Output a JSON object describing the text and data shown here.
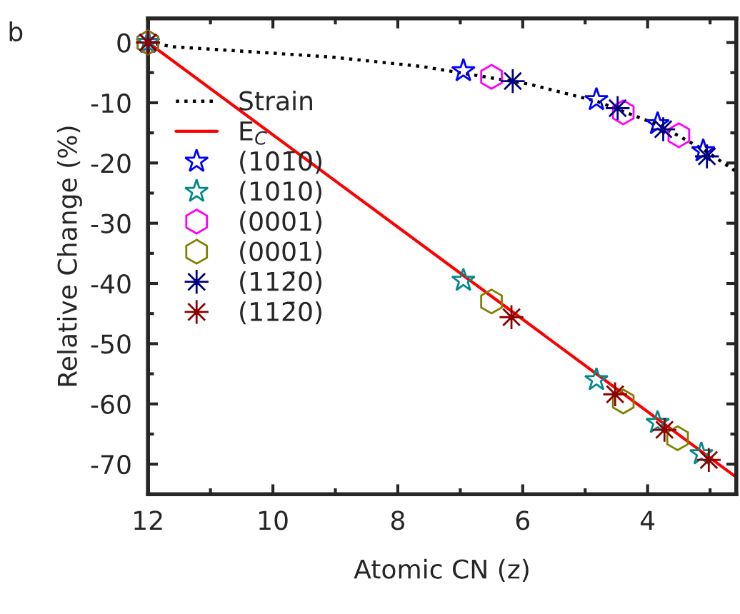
{
  "chart_data": {
    "type": "line",
    "xlabel": "Atomic CN (z)",
    "ylabel": "Relative Change (%)",
    "xlim": [
      12,
      2.58
    ],
    "xticks": [
      12,
      10,
      8,
      6,
      4
    ],
    "ylim": [
      -75,
      4
    ],
    "yticks": [
      0,
      -10,
      -20,
      -30,
      -40,
      -50,
      -60,
      -70
    ],
    "grid": false,
    "legend": "top left",
    "annotations": [
      "b"
    ],
    "series": [
      {
        "name": "Strain",
        "line_style": "dotted",
        "marker": "none",
        "color": "#000000",
        "x": [
          12,
          11.6,
          9.07,
          7.6,
          5.9,
          4.8,
          3.8,
          3.1,
          2.6
        ],
        "values": [
          0,
          -0.7,
          -2.4,
          -4.0,
          -6.9,
          -9.8,
          -13.8,
          -17.8,
          -21.3
        ]
      },
      {
        "name": "E$_{C}$",
        "line_style": "solid",
        "marker": "none",
        "color": "#ff0000",
        "x": [
          12,
          2.59
        ],
        "values": [
          0,
          -72.1
        ]
      },
      {
        "name": "(101̄0)",
        "type": "scatter",
        "marker": "star",
        "color": "#0000ff",
        "x": [
          12,
          6.95,
          4.82,
          3.84,
          3.11
        ],
        "values": [
          0,
          -4.7,
          -9.5,
          -13.5,
          -18.0
        ]
      },
      {
        "name": "(1010)",
        "type": "scatter",
        "marker": "star",
        "color": "#008b8b",
        "x": [
          12,
          6.95,
          4.82,
          3.84,
          3.14
        ],
        "values": [
          0,
          -39.5,
          -56.0,
          -63.1,
          -68.3
        ]
      },
      {
        "name": "(0001)",
        "type": "scatter",
        "color": "#ff00ff",
        "x": [
          12,
          6.5,
          4.39,
          3.5
        ],
        "values": [
          0,
          -5.7,
          -11.6,
          -15.4
        ]
      },
      {
        "name": "(0001)",
        "type": "scatter",
        "color": "#808000",
        "x": [
          12,
          6.5,
          4.39,
          3.52
        ],
        "values": [
          0,
          -43.0,
          -59.6,
          -65.7
        ]
      },
      {
        "name": "(112̄0)",
        "type": "scatter",
        "marker": "cross",
        "color": "#000080",
        "x": [
          12,
          6.16,
          4.48,
          3.75,
          3.05
        ],
        "values": [
          0,
          -6.4,
          -10.9,
          -14.4,
          -18.9
        ]
      },
      {
        "name": "(112̄0)",
        "type": "scatter",
        "marker": "cross",
        "color": "#8b0000",
        "x": [
          12,
          6.18,
          4.52,
          3.73,
          3.02
        ],
        "values": [
          0,
          -45.6,
          -58.4,
          -64.3,
          -69.3
        ]
      }
    ]
  }
}
